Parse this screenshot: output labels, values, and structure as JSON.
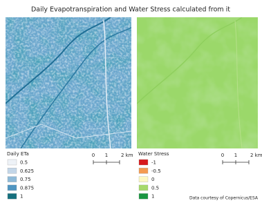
{
  "title": "Daily Evapotranspiration and Water Stress calculated from it",
  "panels": [
    {
      "legend_title": "Daily ETa",
      "legend": [
        {
          "label": "0.5",
          "color": "#eef2f7"
        },
        {
          "label": "0.625",
          "color": "#c3d6e8"
        },
        {
          "label": "0.75",
          "color": "#8ebad8"
        },
        {
          "label": "0.875",
          "color": "#4f95c1"
        },
        {
          "label": "1",
          "color": "#16707e"
        }
      ],
      "scale": [
        "0",
        "1",
        "2 km"
      ]
    },
    {
      "legend_title": "Water Stress",
      "legend": [
        {
          "label": "-1",
          "color": "#d7191c"
        },
        {
          "label": "-0.5",
          "color": "#f49b52"
        },
        {
          "label": "0",
          "color": "#fdf8c2"
        },
        {
          "label": "0.5",
          "color": "#a6d96a"
        },
        {
          "label": "1",
          "color": "#1a9641"
        }
      ],
      "scale": [
        "0",
        "1",
        "2 km"
      ]
    }
  ],
  "credit": "Data courtesy of Copernicus/ESA"
}
